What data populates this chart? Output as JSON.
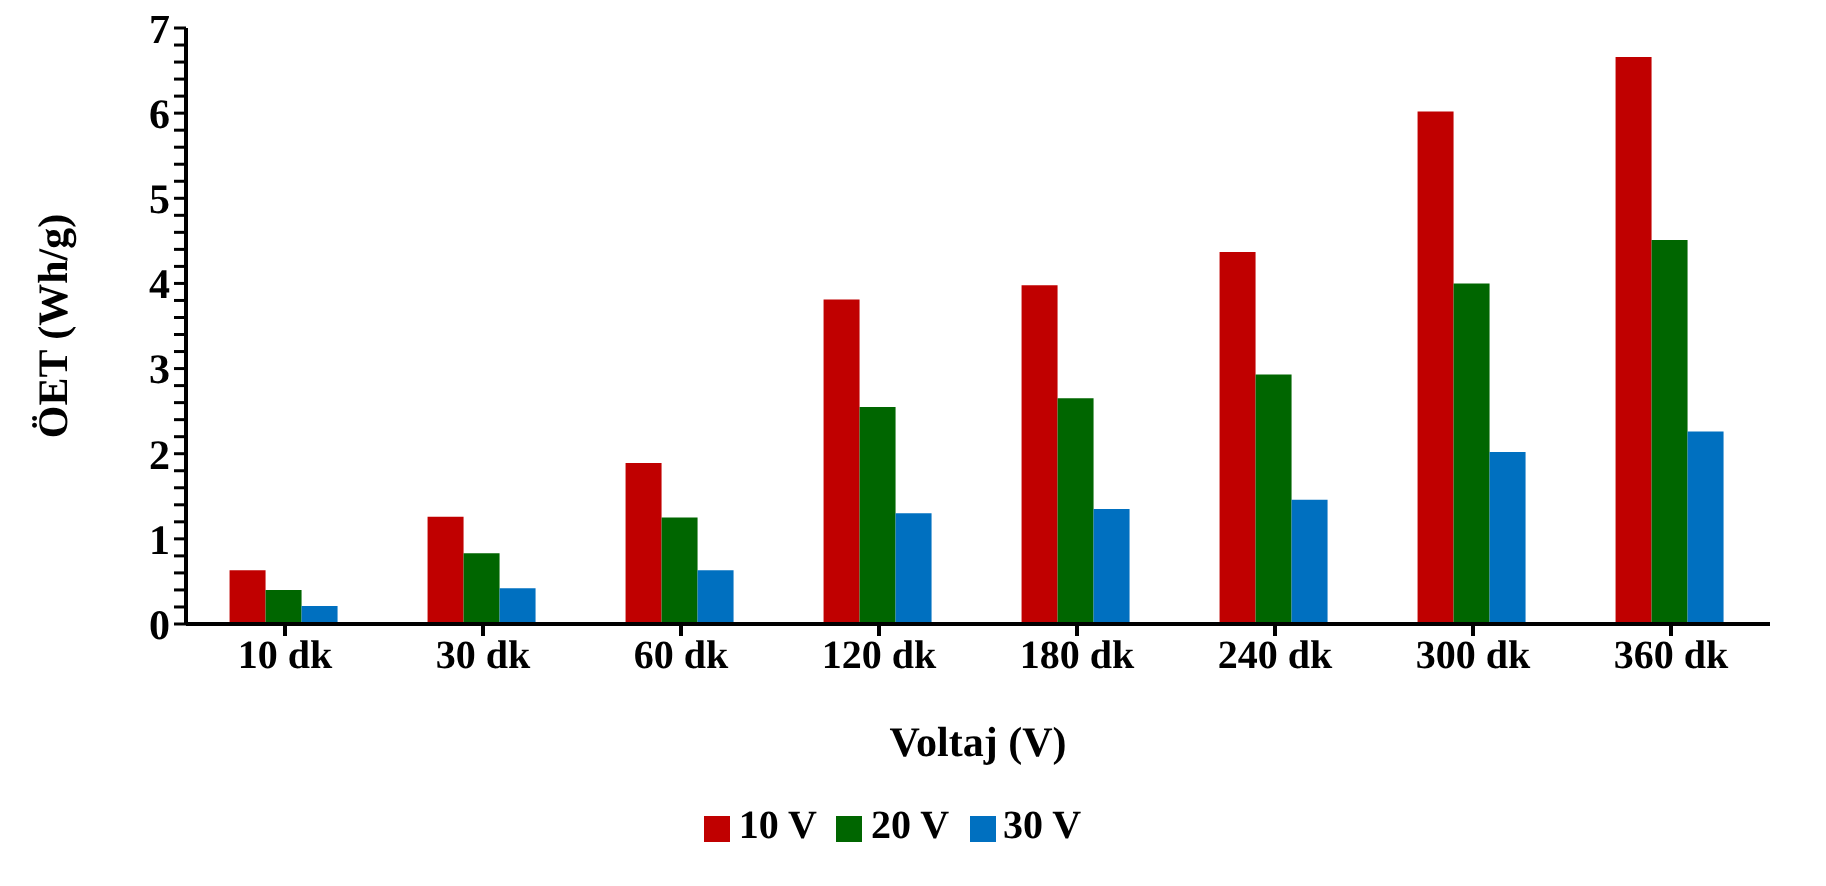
{
  "chart_data": {
    "type": "bar",
    "xlabel": "Voltaj (V)",
    "ylabel": "ÖET (Wh/g)",
    "categories": [
      "10 dk",
      "30 dk",
      "60 dk",
      "120 dk",
      "180 dk",
      "240 dk",
      "300 dk",
      "360 dk"
    ],
    "series": [
      {
        "name": "10 V",
        "color": "#c00000",
        "values": [
          0.63,
          1.26,
          1.89,
          3.81,
          3.98,
          4.37,
          6.02,
          6.66
        ]
      },
      {
        "name": "20 V",
        "color": "#006600",
        "values": [
          0.4,
          0.83,
          1.25,
          2.55,
          2.65,
          2.93,
          4.0,
          4.51
        ]
      },
      {
        "name": "30 V",
        "color": "#0070c0",
        "values": [
          0.21,
          0.42,
          0.63,
          1.3,
          1.35,
          1.46,
          2.02,
          2.26
        ]
      }
    ],
    "ylim": [
      0,
      7
    ],
    "yticks": [
      0,
      {
        "value": 0.2,
        "label": null
      },
      {
        "value": 0.4,
        "label": null
      },
      {
        "value": 0.6,
        "label": null
      },
      {
        "value": 0.8,
        "label": null
      },
      1,
      {
        "value": 1.2,
        "label": null
      },
      {
        "value": 1.4,
        "label": null
      },
      {
        "value": 1.6,
        "label": null
      },
      {
        "value": 1.8,
        "label": null
      },
      2,
      {
        "value": 2.2,
        "label": null
      },
      {
        "value": 2.4,
        "label": null
      },
      {
        "value": 2.6,
        "label": null
      },
      {
        "value": 2.8,
        "label": null
      },
      3,
      {
        "value": 3.2,
        "label": null
      },
      {
        "value": 3.4,
        "label": null
      },
      {
        "value": 3.6,
        "label": null
      },
      {
        "value": 3.8,
        "label": null
      },
      4,
      {
        "value": 4.2,
        "label": null
      },
      {
        "value": 4.4,
        "label": null
      },
      {
        "value": 4.6,
        "label": null
      },
      {
        "value": 4.8,
        "label": null
      },
      5,
      {
        "value": 5.2,
        "label": null
      },
      {
        "value": 5.4,
        "label": null
      },
      {
        "value": 5.6,
        "label": null
      },
      {
        "value": 5.8,
        "label": null
      },
      6,
      {
        "value": 6.2,
        "label": null
      },
      {
        "value": 6.4,
        "label": null
      },
      {
        "value": 6.6,
        "label": null
      },
      {
        "value": 6.8,
        "label": null
      },
      7
    ],
    "grid": false,
    "legend": "bottom"
  }
}
